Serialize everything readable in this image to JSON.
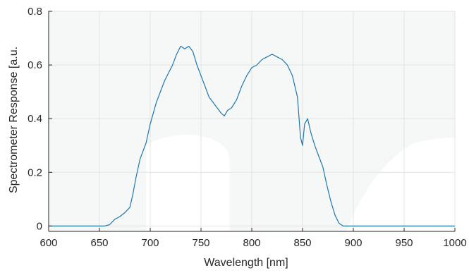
{
  "chart_data": {
    "type": "line",
    "title": "",
    "xlabel": "Wavelength [nm]",
    "ylabel": "Spectrometer Response [a.u.",
    "xlim": [
      600,
      1000
    ],
    "ylim": [
      -0.02,
      0.8
    ],
    "xticks": [
      600,
      650,
      700,
      750,
      800,
      850,
      900,
      950,
      1000
    ],
    "yticks": [
      0,
      0.2,
      0.4,
      0.6,
      0.8
    ],
    "xtick_labels": [
      "600",
      "650",
      "700",
      "750",
      "800",
      "850",
      "900",
      "950",
      "1000"
    ],
    "ytick_labels": [
      "0",
      "0.2",
      "0.4",
      "0.6",
      "0.8"
    ],
    "grid": true,
    "colors": {
      "line": "#1f77b4",
      "plot_bg": "#f6f7f7",
      "grid": "#e2e4e4",
      "axis": "#262626"
    },
    "series": [
      {
        "x": [
          600,
          620,
          640,
          655,
          660,
          665,
          670,
          675,
          680,
          683,
          686,
          690,
          693,
          696,
          700,
          703,
          706,
          710,
          714,
          718,
          722,
          726,
          730,
          734,
          738,
          742,
          746,
          750,
          754,
          758,
          762,
          766,
          770,
          773,
          776,
          780,
          785,
          790,
          795,
          800,
          805,
          810,
          815,
          820,
          825,
          830,
          835,
          840,
          845,
          848,
          850,
          852,
          855,
          858,
          862,
          866,
          870,
          874,
          878,
          882,
          886,
          890,
          900,
          920,
          950,
          975,
          1000
        ],
        "y": [
          0.0,
          0.0,
          0.0,
          0.0,
          0.005,
          0.025,
          0.035,
          0.05,
          0.07,
          0.12,
          0.18,
          0.25,
          0.28,
          0.31,
          0.38,
          0.42,
          0.46,
          0.5,
          0.54,
          0.57,
          0.6,
          0.64,
          0.67,
          0.66,
          0.67,
          0.65,
          0.6,
          0.56,
          0.52,
          0.48,
          0.46,
          0.44,
          0.42,
          0.41,
          0.43,
          0.44,
          0.47,
          0.52,
          0.56,
          0.59,
          0.6,
          0.62,
          0.63,
          0.64,
          0.63,
          0.62,
          0.6,
          0.56,
          0.48,
          0.33,
          0.3,
          0.38,
          0.4,
          0.35,
          0.3,
          0.26,
          0.22,
          0.15,
          0.09,
          0.04,
          0.01,
          0.0,
          0.0,
          0.0,
          0.0,
          0.0,
          0.0
        ]
      }
    ]
  }
}
